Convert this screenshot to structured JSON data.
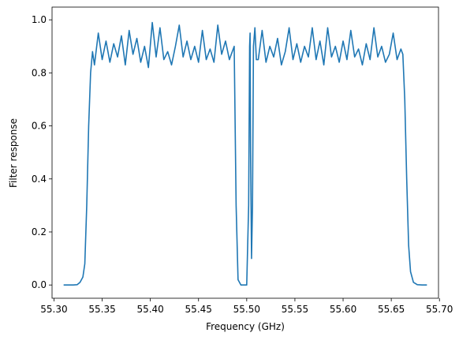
{
  "chart_data": {
    "type": "line",
    "xlabel": "Frequency (GHz)",
    "ylabel": "Filter response",
    "xlim": [
      55.298,
      55.699
    ],
    "ylim": [
      -0.05,
      1.048
    ],
    "xticks": [
      {
        "value": 55.3,
        "label": "55.30"
      },
      55.35,
      {
        "value": 55.4,
        "label": "55.40"
      },
      55.45,
      {
        "value": 55.5,
        "label": "55.50"
      },
      55.55,
      {
        "value": 55.6,
        "label": "55.60"
      },
      55.65,
      {
        "value": 55.7,
        "label": "55.70"
      }
    ],
    "yticks": [
      {
        "value": 0,
        "label": "0.0"
      },
      0.2,
      0.4,
      0.6,
      0.8,
      {
        "value": 1,
        "label": "1.0"
      }
    ],
    "x": [
      55.31,
      55.315,
      55.32,
      55.324,
      55.327,
      55.33,
      55.332,
      55.334,
      55.336,
      55.338,
      55.34,
      55.342,
      55.346,
      55.35,
      55.354,
      55.358,
      55.362,
      55.366,
      55.37,
      55.374,
      55.378,
      55.382,
      55.386,
      55.39,
      55.394,
      55.398,
      55.402,
      55.406,
      55.41,
      55.414,
      55.418,
      55.422,
      55.426,
      55.43,
      55.434,
      55.438,
      55.442,
      55.446,
      55.45,
      55.454,
      55.458,
      55.462,
      55.466,
      55.47,
      55.474,
      55.478,
      55.482,
      55.485,
      55.487,
      55.489,
      55.491,
      55.494,
      55.5,
      55.502,
      55.503,
      55.5035,
      55.504,
      55.505,
      55.506,
      55.507,
      55.5085,
      55.51,
      55.512,
      55.516,
      55.52,
      55.524,
      55.528,
      55.532,
      55.536,
      55.54,
      55.544,
      55.548,
      55.552,
      55.556,
      55.56,
      55.564,
      55.568,
      55.572,
      55.576,
      55.58,
      55.584,
      55.588,
      55.592,
      55.596,
      55.6,
      55.604,
      55.608,
      55.612,
      55.616,
      55.62,
      55.624,
      55.628,
      55.632,
      55.636,
      55.64,
      55.644,
      55.648,
      55.652,
      55.656,
      55.66,
      55.662,
      55.664,
      55.666,
      55.668,
      55.67,
      55.673,
      55.677,
      55.682,
      55.687
    ],
    "series": [
      {
        "color": "#1f77b4",
        "values": [
          0,
          0,
          0,
          0.001,
          0.01,
          0.03,
          0.08,
          0.3,
          0.6,
          0.8,
          0.88,
          0.83,
          0.95,
          0.85,
          0.92,
          0.84,
          0.91,
          0.86,
          0.94,
          0.83,
          0.96,
          0.87,
          0.93,
          0.84,
          0.9,
          0.82,
          0.99,
          0.86,
          0.97,
          0.85,
          0.88,
          0.83,
          0.9,
          0.98,
          0.86,
          0.92,
          0.85,
          0.9,
          0.84,
          0.96,
          0.85,
          0.89,
          0.84,
          0.98,
          0.87,
          0.92,
          0.85,
          0.88,
          0.9,
          0.3,
          0.02,
          0,
          0,
          0.3,
          0.9,
          0.95,
          0.5,
          0.1,
          0.3,
          0.9,
          0.97,
          0.85,
          0.85,
          0.96,
          0.84,
          0.9,
          0.86,
          0.93,
          0.83,
          0.88,
          0.97,
          0.85,
          0.91,
          0.84,
          0.9,
          0.86,
          0.97,
          0.85,
          0.92,
          0.83,
          0.97,
          0.86,
          0.9,
          0.84,
          0.92,
          0.85,
          0.96,
          0.86,
          0.89,
          0.83,
          0.91,
          0.85,
          0.97,
          0.86,
          0.9,
          0.84,
          0.87,
          0.95,
          0.85,
          0.89,
          0.87,
          0.7,
          0.4,
          0.15,
          0.05,
          0.01,
          0.001,
          0,
          0
        ]
      }
    ]
  }
}
